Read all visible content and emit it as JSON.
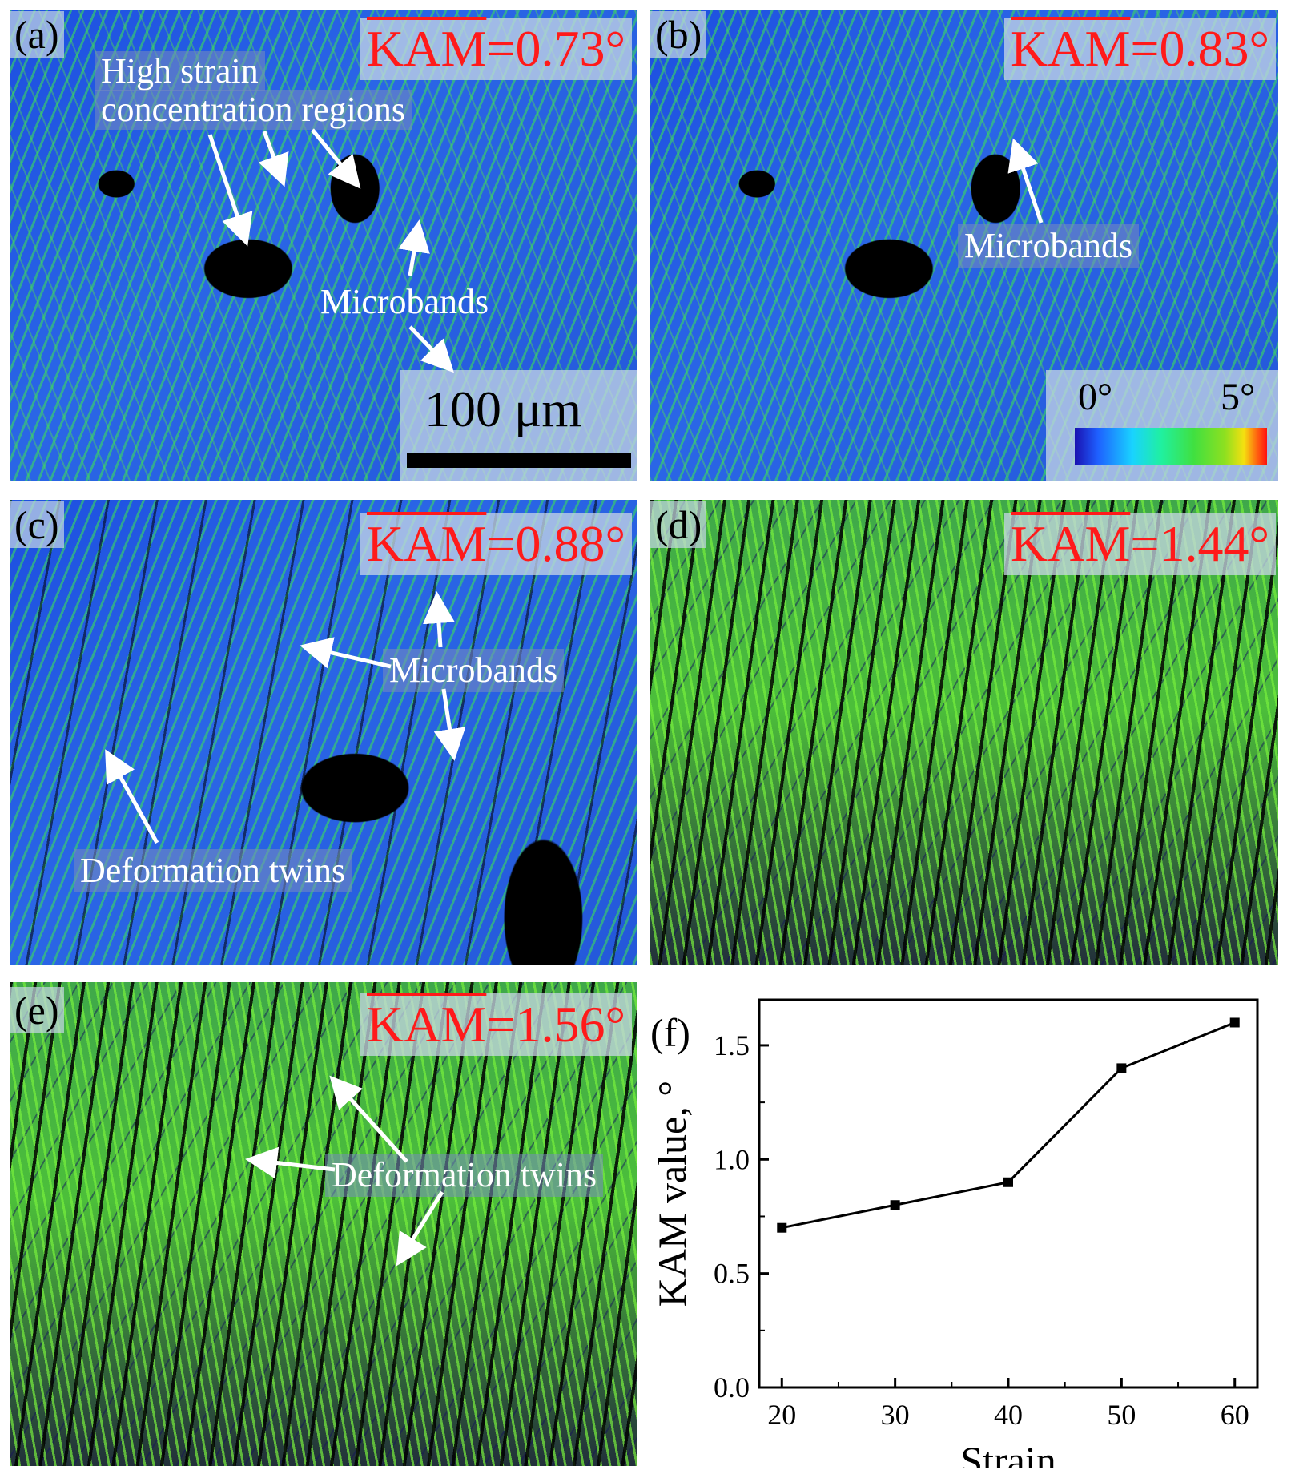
{
  "panels": {
    "a": {
      "label": "(a)",
      "kam_symbol": "KAM",
      "kam_value": "=0.73°",
      "notes": [
        "High strain",
        "concentration regions",
        "Microbands"
      ],
      "scale": "100 μm"
    },
    "b": {
      "label": "(b)",
      "kam_symbol": "KAM",
      "kam_value": "=0.83°",
      "notes": [
        "Microbands"
      ],
      "colorbar": {
        "min": "0°",
        "max": "5°"
      }
    },
    "c": {
      "label": "(c)",
      "kam_symbol": "KAM",
      "kam_value": "=0.88°",
      "notes": [
        "Microbands",
        "Deformation twins"
      ]
    },
    "d": {
      "label": "(d)",
      "kam_symbol": "KAM",
      "kam_value": "=1.44°"
    },
    "e": {
      "label": "(e)",
      "kam_symbol": "KAM",
      "kam_value": "=1.56°",
      "notes": [
        "Deformation twins"
      ]
    },
    "f": {
      "label": "(f)"
    }
  },
  "colors": {
    "line": "#000000",
    "kam_text": "#ff1a1a",
    "arrow": "#ffffff"
  },
  "chart_data": {
    "type": "line",
    "title": "",
    "xlabel": "Strain",
    "ylabel": "KAM value, °",
    "x": [
      20,
      30,
      40,
      50,
      60
    ],
    "series": [
      {
        "values": [
          0.7,
          0.8,
          0.9,
          1.4,
          1.6
        ]
      }
    ],
    "xlim": [
      18,
      62
    ],
    "ylim": [
      0.0,
      1.7
    ],
    "xticks": [
      "20",
      "30",
      "40",
      "50",
      "60"
    ],
    "yticks": [
      "0.0",
      "0.5",
      "1.0",
      "1.5"
    ],
    "grid": false,
    "marker": "square"
  }
}
